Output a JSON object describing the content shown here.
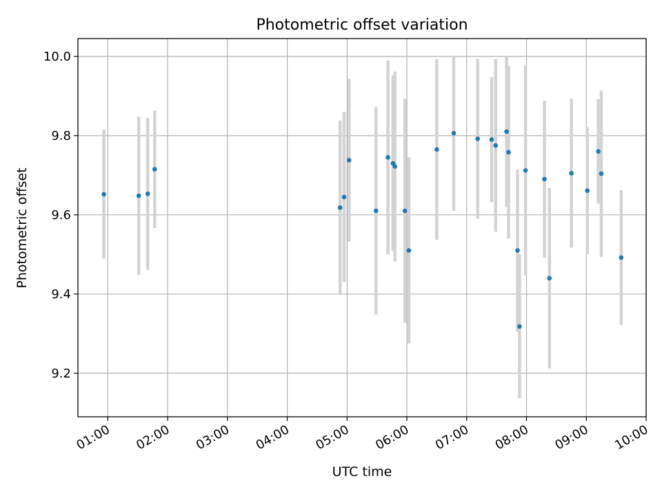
{
  "chart_data": {
    "type": "scatter",
    "title": "Photometric offset variation",
    "xlabel": "UTC time",
    "ylabel": "Photometric offset",
    "x_ticks": [
      "01:00",
      "02:00",
      "03:00",
      "04:00",
      "05:00",
      "06:00",
      "07:00",
      "08:00",
      "09:00",
      "10:00"
    ],
    "y_ticks": [
      "9.2",
      "9.4",
      "9.6",
      "9.8",
      "10.0"
    ],
    "xlim": [
      "00:30",
      "10:00"
    ],
    "ylim": [
      9.09,
      10.045
    ],
    "grid": true,
    "colors": {
      "point": "#1f77b4",
      "errorbar": "#d3d3d3",
      "grid": "#b0b0b0"
    },
    "points": [
      {
        "x": "00:56",
        "y": 9.652,
        "err": 0.163
      },
      {
        "x": "01:31",
        "y": 9.648,
        "err": 0.2
      },
      {
        "x": "01:40",
        "y": 9.653,
        "err": 0.192
      },
      {
        "x": "01:47",
        "y": 9.715,
        "err": 0.148
      },
      {
        "x": "04:53",
        "y": 9.618,
        "err": 0.22
      },
      {
        "x": "04:57",
        "y": 9.645,
        "err": 0.215
      },
      {
        "x": "05:02",
        "y": 9.738,
        "err": 0.205
      },
      {
        "x": "05:29",
        "y": 9.61,
        "err": 0.262
      },
      {
        "x": "05:41",
        "y": 9.745,
        "err": 0.245
      },
      {
        "x": "05:46",
        "y": 9.73,
        "err": 0.222
      },
      {
        "x": "05:48",
        "y": 9.722,
        "err": 0.24
      },
      {
        "x": "05:58",
        "y": 9.61,
        "err": 0.283
      },
      {
        "x": "06:02",
        "y": 9.51,
        "err": 0.235
      },
      {
        "x": "06:30",
        "y": 9.765,
        "err": 0.228
      },
      {
        "x": "06:47",
        "y": 9.806,
        "err": 0.196
      },
      {
        "x": "07:11",
        "y": 9.792,
        "err": 0.202
      },
      {
        "x": "07:25",
        "y": 9.79,
        "err": 0.158
      },
      {
        "x": "07:29",
        "y": 9.775,
        "err": 0.218
      },
      {
        "x": "07:40",
        "y": 9.81,
        "err": 0.19
      },
      {
        "x": "07:42",
        "y": 9.758,
        "err": 0.218
      },
      {
        "x": "07:51",
        "y": 9.51,
        "err": 0.205
      },
      {
        "x": "07:53",
        "y": 9.318,
        "err": 0.182
      },
      {
        "x": "07:59",
        "y": 9.712,
        "err": 0.265
      },
      {
        "x": "08:18",
        "y": 9.69,
        "err": 0.198
      },
      {
        "x": "08:23",
        "y": 9.44,
        "err": 0.228
      },
      {
        "x": "08:45",
        "y": 9.705,
        "err": 0.188
      },
      {
        "x": "09:01",
        "y": 9.661,
        "err": 0.16
      },
      {
        "x": "09:12",
        "y": 9.76,
        "err": 0.132
      },
      {
        "x": "09:15",
        "y": 9.704,
        "err": 0.21
      },
      {
        "x": "09:35",
        "y": 9.492,
        "err": 0.17
      }
    ]
  }
}
